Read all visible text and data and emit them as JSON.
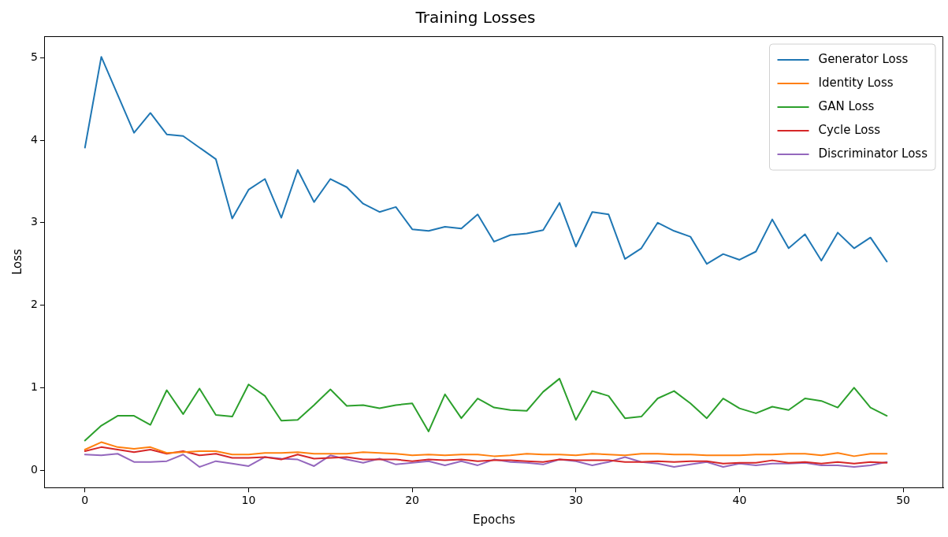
{
  "chart_data": {
    "type": "line",
    "title": "Training Losses",
    "xlabel": "Epochs",
    "ylabel": "Loss",
    "x": [
      0,
      1,
      2,
      3,
      4,
      5,
      6,
      7,
      8,
      9,
      10,
      11,
      12,
      13,
      14,
      15,
      16,
      17,
      18,
      19,
      20,
      21,
      22,
      23,
      24,
      25,
      26,
      27,
      28,
      29,
      30,
      31,
      32,
      33,
      34,
      35,
      36,
      37,
      38,
      39,
      40,
      41,
      42,
      43,
      44,
      45,
      46,
      47,
      48,
      49
    ],
    "series": [
      {
        "name": "Generator Loss",
        "color": "#1f77b4",
        "values": [
          3.91,
          5.01,
          4.55,
          4.09,
          4.33,
          4.07,
          4.05,
          3.91,
          3.77,
          3.05,
          3.4,
          3.53,
          3.06,
          3.64,
          3.25,
          3.53,
          3.43,
          3.23,
          3.13,
          3.19,
          2.92,
          2.9,
          2.95,
          2.93,
          3.1,
          2.77,
          2.85,
          2.87,
          2.91,
          3.24,
          2.71,
          3.13,
          3.1,
          2.56,
          2.69,
          3.0,
          2.9,
          2.83,
          2.5,
          2.62,
          2.55,
          2.65,
          3.04,
          2.69,
          2.86,
          2.54,
          2.88,
          2.69,
          2.82,
          2.53
        ]
      },
      {
        "name": "Identity Loss",
        "color": "#ff7f0e",
        "values": [
          0.25,
          0.34,
          0.28,
          0.26,
          0.28,
          0.21,
          0.22,
          0.23,
          0.23,
          0.19,
          0.19,
          0.21,
          0.21,
          0.22,
          0.2,
          0.2,
          0.2,
          0.22,
          0.21,
          0.2,
          0.18,
          0.19,
          0.18,
          0.19,
          0.19,
          0.17,
          0.18,
          0.2,
          0.19,
          0.19,
          0.18,
          0.2,
          0.19,
          0.18,
          0.2,
          0.2,
          0.19,
          0.19,
          0.18,
          0.18,
          0.18,
          0.19,
          0.19,
          0.2,
          0.2,
          0.18,
          0.21,
          0.17,
          0.2,
          0.2
        ]
      },
      {
        "name": "GAN Loss",
        "color": "#2ca02c",
        "values": [
          0.36,
          0.54,
          0.66,
          0.66,
          0.55,
          0.97,
          0.68,
          0.99,
          0.67,
          0.65,
          1.04,
          0.9,
          0.6,
          0.61,
          0.79,
          0.98,
          0.78,
          0.79,
          0.75,
          0.79,
          0.81,
          0.47,
          0.92,
          0.63,
          0.87,
          0.76,
          0.73,
          0.72,
          0.95,
          1.11,
          0.61,
          0.96,
          0.9,
          0.63,
          0.65,
          0.87,
          0.96,
          0.81,
          0.63,
          0.87,
          0.75,
          0.69,
          0.77,
          0.73,
          0.87,
          0.84,
          0.76,
          1.0,
          0.76,
          0.66
        ]
      },
      {
        "name": "Cycle Loss",
        "color": "#d62728",
        "values": [
          0.23,
          0.28,
          0.25,
          0.22,
          0.25,
          0.2,
          0.23,
          0.18,
          0.2,
          0.15,
          0.15,
          0.16,
          0.13,
          0.19,
          0.14,
          0.15,
          0.16,
          0.13,
          0.13,
          0.13,
          0.11,
          0.13,
          0.12,
          0.13,
          0.11,
          0.12,
          0.12,
          0.11,
          0.1,
          0.13,
          0.12,
          0.12,
          0.12,
          0.1,
          0.1,
          0.11,
          0.1,
          0.11,
          0.11,
          0.08,
          0.09,
          0.09,
          0.12,
          0.09,
          0.1,
          0.08,
          0.1,
          0.08,
          0.1,
          0.09
        ]
      },
      {
        "name": "Discriminator Loss",
        "color": "#9467bd",
        "values": [
          0.19,
          0.18,
          0.2,
          0.1,
          0.1,
          0.11,
          0.19,
          0.04,
          0.11,
          0.08,
          0.05,
          0.16,
          0.14,
          0.13,
          0.05,
          0.18,
          0.13,
          0.09,
          0.14,
          0.07,
          0.09,
          0.11,
          0.06,
          0.11,
          0.06,
          0.13,
          0.1,
          0.09,
          0.07,
          0.13,
          0.11,
          0.06,
          0.1,
          0.16,
          0.1,
          0.08,
          0.04,
          0.07,
          0.1,
          0.04,
          0.08,
          0.06,
          0.08,
          0.08,
          0.09,
          0.06,
          0.06,
          0.04,
          0.06,
          0.1
        ]
      }
    ],
    "xlim": [
      -2.45,
      52.45
    ],
    "xticks": [
      0,
      10,
      20,
      30,
      40,
      50
    ],
    "ylim": [
      -0.21,
      5.26
    ],
    "yticks": [
      0,
      1,
      2,
      3,
      4,
      5
    ],
    "grid": false,
    "legend": "top right",
    "marker": "none",
    "line_style": "solid"
  }
}
